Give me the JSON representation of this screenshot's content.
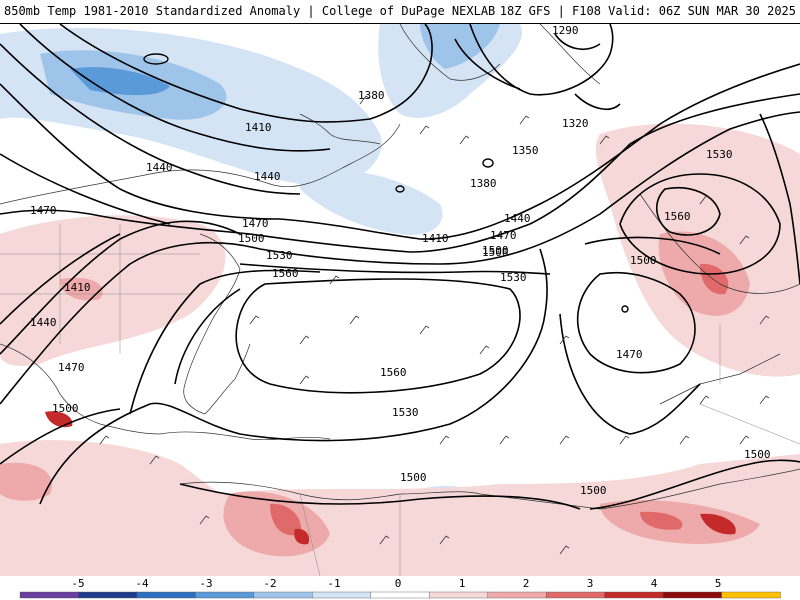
{
  "header": {
    "left": "850mb Temp 1981-2010 Standardized Anomaly | College of DuPage NEXLAB",
    "right": "18Z GFS | F108 Valid: 06Z SUN MAR 30 2025"
  },
  "contour_labels": [
    "1290",
    "1380",
    "1320",
    "1350",
    "1410",
    "1440",
    "1380",
    "1440",
    "1470",
    "1410",
    "1500",
    "1530",
    "1470",
    "1500",
    "1530",
    "1560",
    "1560",
    "1530",
    "1440",
    "1410",
    "1470",
    "1560",
    "1500",
    "1530",
    "1500",
    "1500",
    "1470",
    "1500",
    "1500",
    "1500"
  ],
  "colorbar": {
    "ticks": [
      "-5",
      "-4",
      "-3",
      "-2",
      "-1",
      "0",
      "1",
      "2",
      "3",
      "4",
      "5"
    ],
    "colors": [
      "#6b3fa0",
      "#1f3d8a",
      "#2d6fc0",
      "#5b9ad8",
      "#9fc4ea",
      "#d4e4f4",
      "#ffffff",
      "#f6d8d8",
      "#eeaaaa",
      "#e06a6a",
      "#c42a2a",
      "#8c0c0c",
      "#ffc000"
    ]
  }
}
